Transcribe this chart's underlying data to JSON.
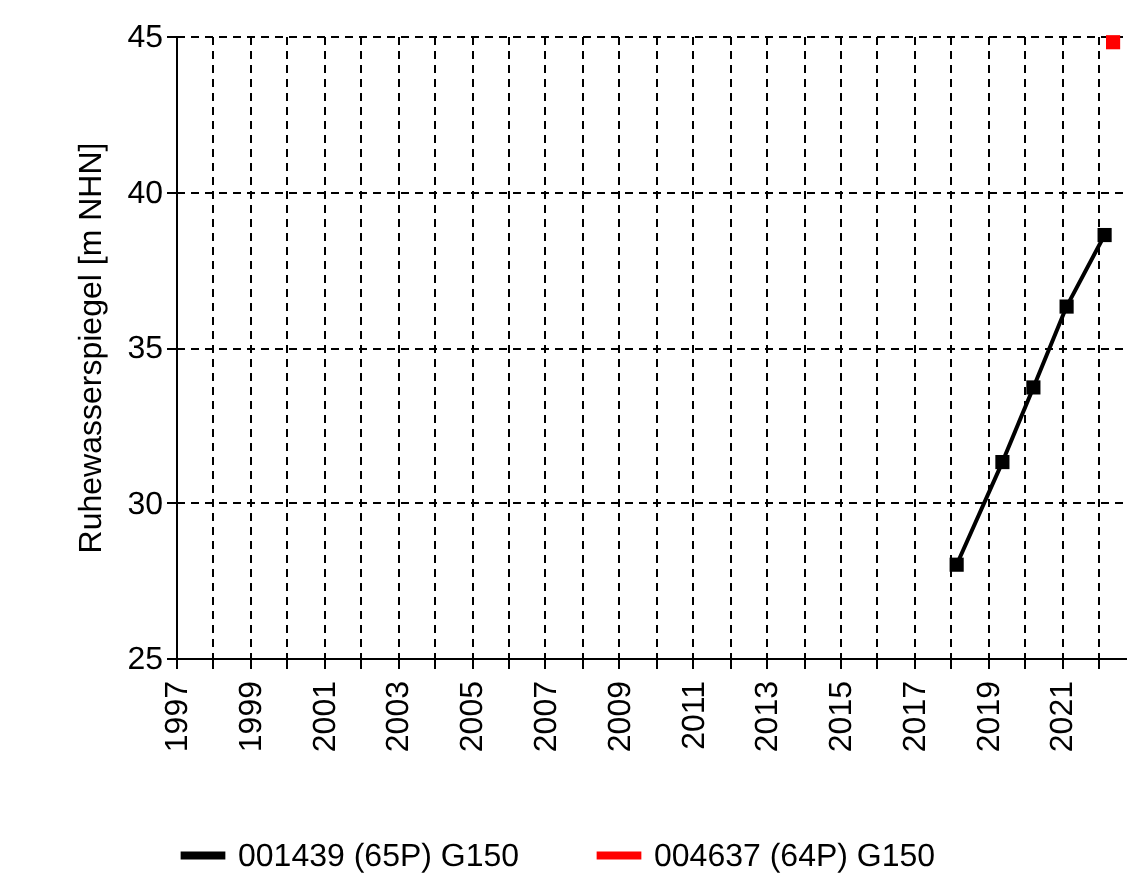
{
  "chart_data": {
    "type": "line",
    "ylabel": "Ruhewasserspiegel [m NHN]",
    "xlim": [
      1997,
      2022.75
    ],
    "xticks": [
      1997,
      {
        "value": 1998,
        "label": null
      },
      1999,
      {
        "value": 2000,
        "label": null
      },
      2001,
      {
        "value": 2002,
        "label": null
      },
      2003,
      {
        "value": 2004,
        "label": null
      },
      2005,
      {
        "value": 2006,
        "label": null
      },
      2007,
      {
        "value": 2008,
        "label": null
      },
      2009,
      {
        "value": 2010,
        "label": null
      },
      2011,
      {
        "value": 2012,
        "label": null
      },
      2013,
      {
        "value": 2014,
        "label": null
      },
      2015,
      {
        "value": 2016,
        "label": null
      },
      2017,
      {
        "value": 2018,
        "label": null
      },
      2019,
      {
        "value": 2020,
        "label": null
      },
      2021,
      {
        "value": 2022,
        "label": null
      }
    ],
    "ylim": [
      25,
      45
    ],
    "yticks": [
      25,
      30,
      35,
      40,
      45
    ],
    "series": [
      {
        "name": "001439 (65P) G150",
        "color": "#000000",
        "x": [
          2018.16,
          2019.4,
          2020.24,
          2021.14,
          2022.17
        ],
        "values": [
          28.0,
          31.3,
          33.7,
          36.3,
          38.6
        ]
      },
      {
        "name": "004637 (64P) G150",
        "color": "#ff0000",
        "x": [
          2022.4
        ],
        "values": [
          44.8
        ]
      }
    ],
    "grid": true,
    "legend": "bottom",
    "marker": "square",
    "line_style": "solid"
  }
}
